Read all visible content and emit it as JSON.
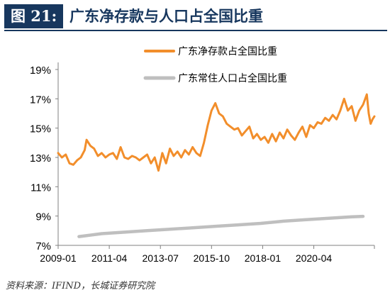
{
  "header": {
    "figure_label": "图 21:",
    "title": "广东净存款与人口占全国比重"
  },
  "source": "资料来源：IFIND，长城证券研究院",
  "colors": {
    "header": "#17375e",
    "deposit": "#F28E2B",
    "population": "#BFBFBF"
  },
  "chart_data": {
    "type": "line",
    "title": "",
    "xlabel": "",
    "ylabel": "",
    "x_range": [
      "2009-01",
      "2022-12"
    ],
    "x_ticks": [
      "2009-01",
      "2011-04",
      "2013-07",
      "2015-10",
      "2018-01",
      "2020-04"
    ],
    "ylim": [
      7,
      19
    ],
    "y_ticks": [
      "7%",
      "9%",
      "11%",
      "13%",
      "15%",
      "17%",
      "19%"
    ],
    "grid": false,
    "legend_position": "top-right",
    "series": [
      {
        "name": "广东净存款占全国比重",
        "color": "#F28E2B",
        "points": [
          [
            "2009-01",
            13.3
          ],
          [
            "2009-03",
            13.0
          ],
          [
            "2009-05",
            13.2
          ],
          [
            "2009-07",
            12.6
          ],
          [
            "2009-09",
            12.5
          ],
          [
            "2009-11",
            12.8
          ],
          [
            "2010-01",
            13.0
          ],
          [
            "2010-03",
            13.5
          ],
          [
            "2010-04",
            14.2
          ],
          [
            "2010-06",
            13.8
          ],
          [
            "2010-08",
            13.6
          ],
          [
            "2010-10",
            13.1
          ],
          [
            "2010-12",
            13.3
          ],
          [
            "2011-02",
            13.0
          ],
          [
            "2011-04",
            13.2
          ],
          [
            "2011-06",
            13.3
          ],
          [
            "2011-08",
            12.9
          ],
          [
            "2011-10",
            13.7
          ],
          [
            "2011-12",
            13.0
          ],
          [
            "2012-02",
            12.9
          ],
          [
            "2012-04",
            13.1
          ],
          [
            "2012-06",
            13.0
          ],
          [
            "2012-08",
            12.8
          ],
          [
            "2012-10",
            13.0
          ],
          [
            "2012-12",
            13.2
          ],
          [
            "2013-02",
            12.6
          ],
          [
            "2013-04",
            13.0
          ],
          [
            "2013-06",
            12.1
          ],
          [
            "2013-08",
            13.3
          ],
          [
            "2013-10",
            12.6
          ],
          [
            "2013-12",
            13.6
          ],
          [
            "2014-02",
            13.1
          ],
          [
            "2014-04",
            13.4
          ],
          [
            "2014-06",
            13.0
          ],
          [
            "2014-08",
            13.5
          ],
          [
            "2014-10",
            13.2
          ],
          [
            "2014-12",
            13.7
          ],
          [
            "2015-02",
            13.3
          ],
          [
            "2015-04",
            13.1
          ],
          [
            "2015-06",
            14.0
          ],
          [
            "2015-08",
            15.2
          ],
          [
            "2015-10",
            16.2
          ],
          [
            "2015-12",
            16.7
          ],
          [
            "2016-02",
            16.0
          ],
          [
            "2016-04",
            15.8
          ],
          [
            "2016-06",
            15.3
          ],
          [
            "2016-08",
            15.1
          ],
          [
            "2016-10",
            14.9
          ],
          [
            "2016-12",
            15.0
          ],
          [
            "2017-02",
            14.5
          ],
          [
            "2017-04",
            14.8
          ],
          [
            "2017-06",
            15.1
          ],
          [
            "2017-08",
            14.3
          ],
          [
            "2017-10",
            14.6
          ],
          [
            "2017-12",
            14.2
          ],
          [
            "2018-02",
            14.4
          ],
          [
            "2018-04",
            14.0
          ],
          [
            "2018-06",
            14.6
          ],
          [
            "2018-08",
            14.1
          ],
          [
            "2018-10",
            14.7
          ],
          [
            "2018-12",
            14.3
          ],
          [
            "2019-02",
            14.9
          ],
          [
            "2019-04",
            14.5
          ],
          [
            "2019-06",
            14.2
          ],
          [
            "2019-08",
            14.7
          ],
          [
            "2019-10",
            15.1
          ],
          [
            "2019-12",
            14.4
          ],
          [
            "2020-02",
            15.2
          ],
          [
            "2020-04",
            15.0
          ],
          [
            "2020-06",
            15.4
          ],
          [
            "2020-08",
            15.3
          ],
          [
            "2020-10",
            15.7
          ],
          [
            "2020-12",
            15.5
          ],
          [
            "2021-02",
            15.9
          ],
          [
            "2021-04",
            15.6
          ],
          [
            "2021-06",
            16.2
          ],
          [
            "2021-08",
            17.0
          ],
          [
            "2021-10",
            16.2
          ],
          [
            "2021-12",
            16.5
          ],
          [
            "2022-02",
            15.5
          ],
          [
            "2022-04",
            16.2
          ],
          [
            "2022-06",
            16.6
          ],
          [
            "2022-08",
            17.3
          ],
          [
            "2022-09",
            16.0
          ],
          [
            "2022-10",
            15.3
          ],
          [
            "2022-11",
            15.6
          ],
          [
            "2022-12",
            15.8
          ]
        ]
      },
      {
        "name": "广东常住人口占全国比重",
        "color": "#BFBFBF",
        "points": [
          [
            "2009-12",
            7.6
          ],
          [
            "2010-12",
            7.8
          ],
          [
            "2011-12",
            7.9
          ],
          [
            "2012-12",
            8.0
          ],
          [
            "2013-12",
            8.1
          ],
          [
            "2014-12",
            8.2
          ],
          [
            "2015-12",
            8.3
          ],
          [
            "2016-12",
            8.4
          ],
          [
            "2017-12",
            8.5
          ],
          [
            "2018-12",
            8.65
          ],
          [
            "2019-12",
            8.75
          ],
          [
            "2020-12",
            8.85
          ],
          [
            "2021-12",
            8.95
          ],
          [
            "2022-06",
            8.98
          ]
        ]
      }
    ]
  }
}
